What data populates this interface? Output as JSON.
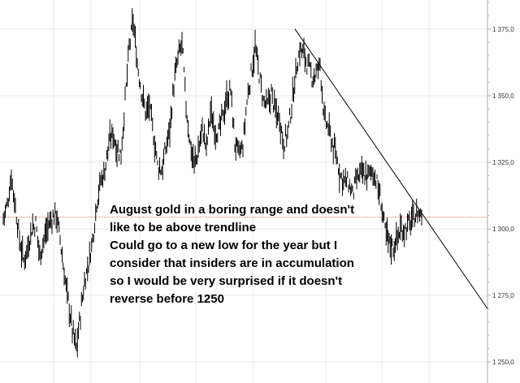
{
  "chart_data": {
    "type": "line",
    "title": "",
    "xlabel": "",
    "ylabel": "",
    "ylim": [
      1248,
      1394
    ],
    "y_ticks": [
      1250.0,
      1275.0,
      1300.0,
      1325.0,
      1350.0,
      1375.0
    ],
    "y_tick_labels": [
      "1 250,0",
      "1 275,0",
      "1 300,0",
      "1 325,0",
      "1 350,0",
      "1 375,0"
    ],
    "grid": true,
    "x": [
      0,
      5,
      10,
      15,
      20,
      25,
      30,
      35,
      40,
      45,
      50,
      55,
      60,
      65,
      70,
      75,
      80,
      85,
      90,
      95,
      100,
      105,
      110,
      115,
      120,
      125,
      130,
      135,
      140,
      145,
      150,
      155,
      160,
      165,
      170,
      175,
      180,
      185,
      190,
      195,
      200,
      205,
      210,
      215,
      220,
      225,
      230,
      235,
      240,
      245,
      250,
      255,
      260,
      265,
      270,
      275,
      280,
      285,
      290,
      295,
      300,
      305,
      310,
      315,
      320,
      325,
      330,
      335,
      340,
      345,
      350,
      355,
      360,
      365,
      370,
      375,
      380,
      385,
      390,
      395,
      400,
      405,
      410,
      415,
      420,
      425,
      430,
      435,
      440,
      445,
      450,
      455,
      460,
      465,
      470,
      475,
      480,
      485,
      490,
      495,
      500,
      505,
      510,
      515
    ],
    "series": [
      {
        "values": [
          1304,
          1309,
          1320,
          1308,
          1296,
          1288,
          1293,
          1300,
          1302,
          1290,
          1296,
          1301,
          1304,
          1306,
          1296,
          1283,
          1273,
          1262,
          1255,
          1268,
          1280,
          1287,
          1296,
          1310,
          1318,
          1322,
          1332,
          1336,
          1330,
          1328,
          1348,
          1368,
          1378,
          1362,
          1352,
          1344,
          1346,
          1335,
          1324,
          1322,
          1330,
          1338,
          1354,
          1364,
          1370,
          1346,
          1332,
          1324,
          1329,
          1338,
          1330,
          1344,
          1338,
          1336,
          1342,
          1349,
          1352,
          1332,
          1328,
          1331,
          1348,
          1358,
          1368,
          1358,
          1348,
          1346,
          1351,
          1344,
          1342,
          1332,
          1336,
          1346,
          1359,
          1367,
          1366,
          1361,
          1357,
          1358,
          1362,
          1341,
          1338,
          1332,
          1327,
          1320,
          1318,
          1317,
          1313,
          1318,
          1321,
          1320,
          1320,
          1322,
          1317,
          1310,
          1299,
          1295,
          1293,
          1297,
          1300,
          1300,
          1302,
          1304,
          1306,
          1305
        ]
      }
    ],
    "trendline": {
      "start": [
        363,
        1375.1
      ],
      "end": [
        600,
        1270.0
      ]
    },
    "horizontal_line": {
      "y": 1304.4
    },
    "colors": {
      "price": "#000000",
      "trendline": "#000000",
      "hline": "#e57373",
      "grid": "#e8e8e8",
      "axis": "#aaaaaa"
    },
    "annotation": [
      "August gold in a boring range and doesn't",
      "like to be above trendline",
      "Could go to a new low for the year but I",
      "consider that insiders are in accumulation",
      "so I would be very surprised if it doesn't",
      "reverse before 1250"
    ]
  }
}
